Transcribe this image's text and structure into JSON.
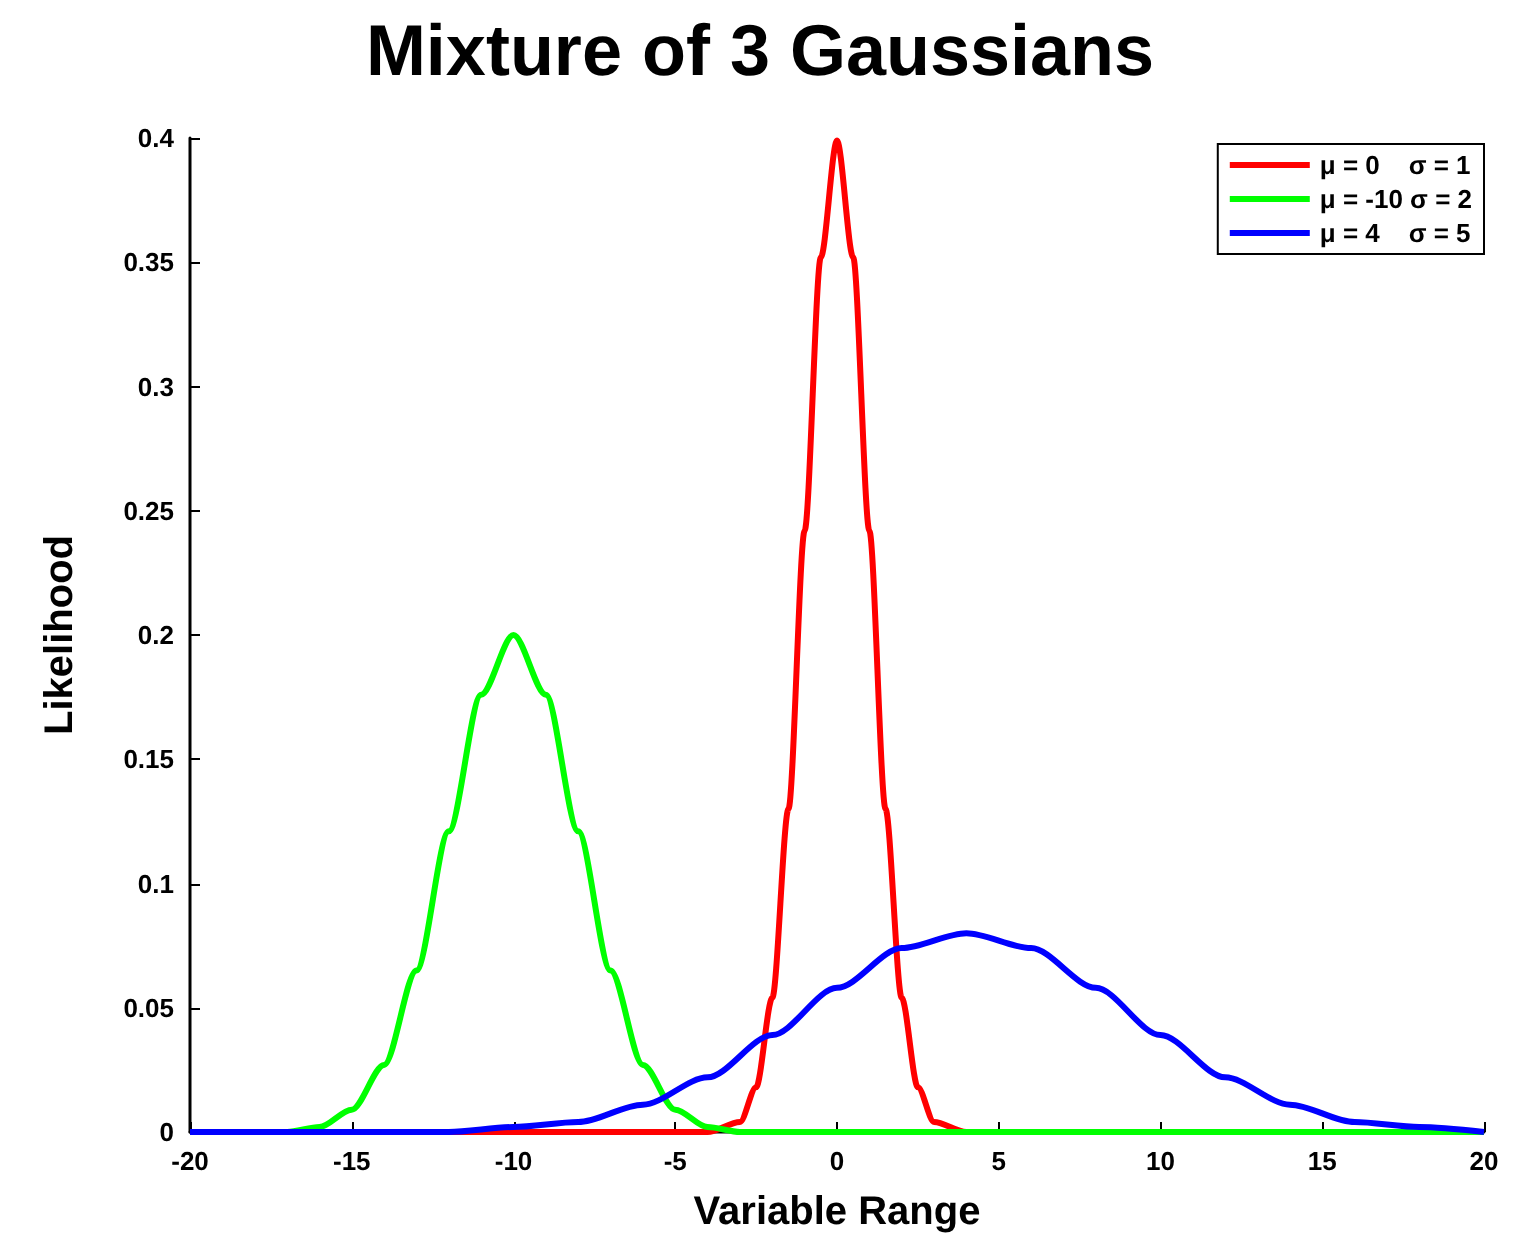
{
  "chart_data": {
    "type": "line",
    "title": "Mixture of 3 Gaussians",
    "xlabel": "Variable Range",
    "ylabel": "Likelihood",
    "xlim": [
      -20,
      20
    ],
    "xticks": [
      -20,
      -15,
      -10,
      -5,
      0,
      5,
      10,
      15,
      20
    ],
    "ylim": [
      0,
      0.4
    ],
    "yticks": [
      0,
      0.05,
      0.1,
      0.15,
      0.2,
      0.25,
      0.3,
      0.35,
      0.4
    ],
    "grid": false,
    "legend": "top right",
    "marker": "none",
    "line_style": "solid",
    "series": [
      {
        "name": "μ = 0    σ = 1",
        "color": "#ff0000",
        "x": [
          -20,
          -5,
          -4,
          -3,
          -2.5,
          -2,
          -1.5,
          -1,
          -0.5,
          0,
          0.5,
          1,
          1.5,
          2,
          2.5,
          3,
          4,
          5,
          20
        ],
        "values": [
          0,
          0,
          0,
          0.004,
          0.018,
          0.054,
          0.13,
          0.242,
          0.352,
          0.399,
          0.352,
          0.242,
          0.13,
          0.054,
          0.018,
          0.004,
          0,
          0,
          0
        ]
      },
      {
        "name": "μ = -10 σ = 2",
        "color": "#00ff00",
        "x": [
          -20,
          -17,
          -16,
          -15,
          -14,
          -13,
          -12,
          -11,
          -10,
          -9,
          -8,
          -7,
          -6,
          -5,
          -4,
          -3,
          20
        ],
        "values": [
          0,
          0,
          0.002,
          0.009,
          0.027,
          0.065,
          0.121,
          0.176,
          0.2,
          0.176,
          0.121,
          0.065,
          0.027,
          0.009,
          0.002,
          0,
          0
        ]
      },
      {
        "name": "μ = 4    σ = 5",
        "color": "#0000ff",
        "x": [
          -20,
          -12,
          -10,
          -8,
          -6,
          -4,
          -2,
          0,
          2,
          4,
          6,
          8,
          10,
          12,
          14,
          16,
          18,
          20
        ],
        "values": [
          0,
          0,
          0.002,
          0.004,
          0.011,
          0.022,
          0.039,
          0.058,
          0.074,
          0.08,
          0.074,
          0.058,
          0.039,
          0.022,
          0.011,
          0.004,
          0.002,
          0
        ]
      }
    ]
  }
}
